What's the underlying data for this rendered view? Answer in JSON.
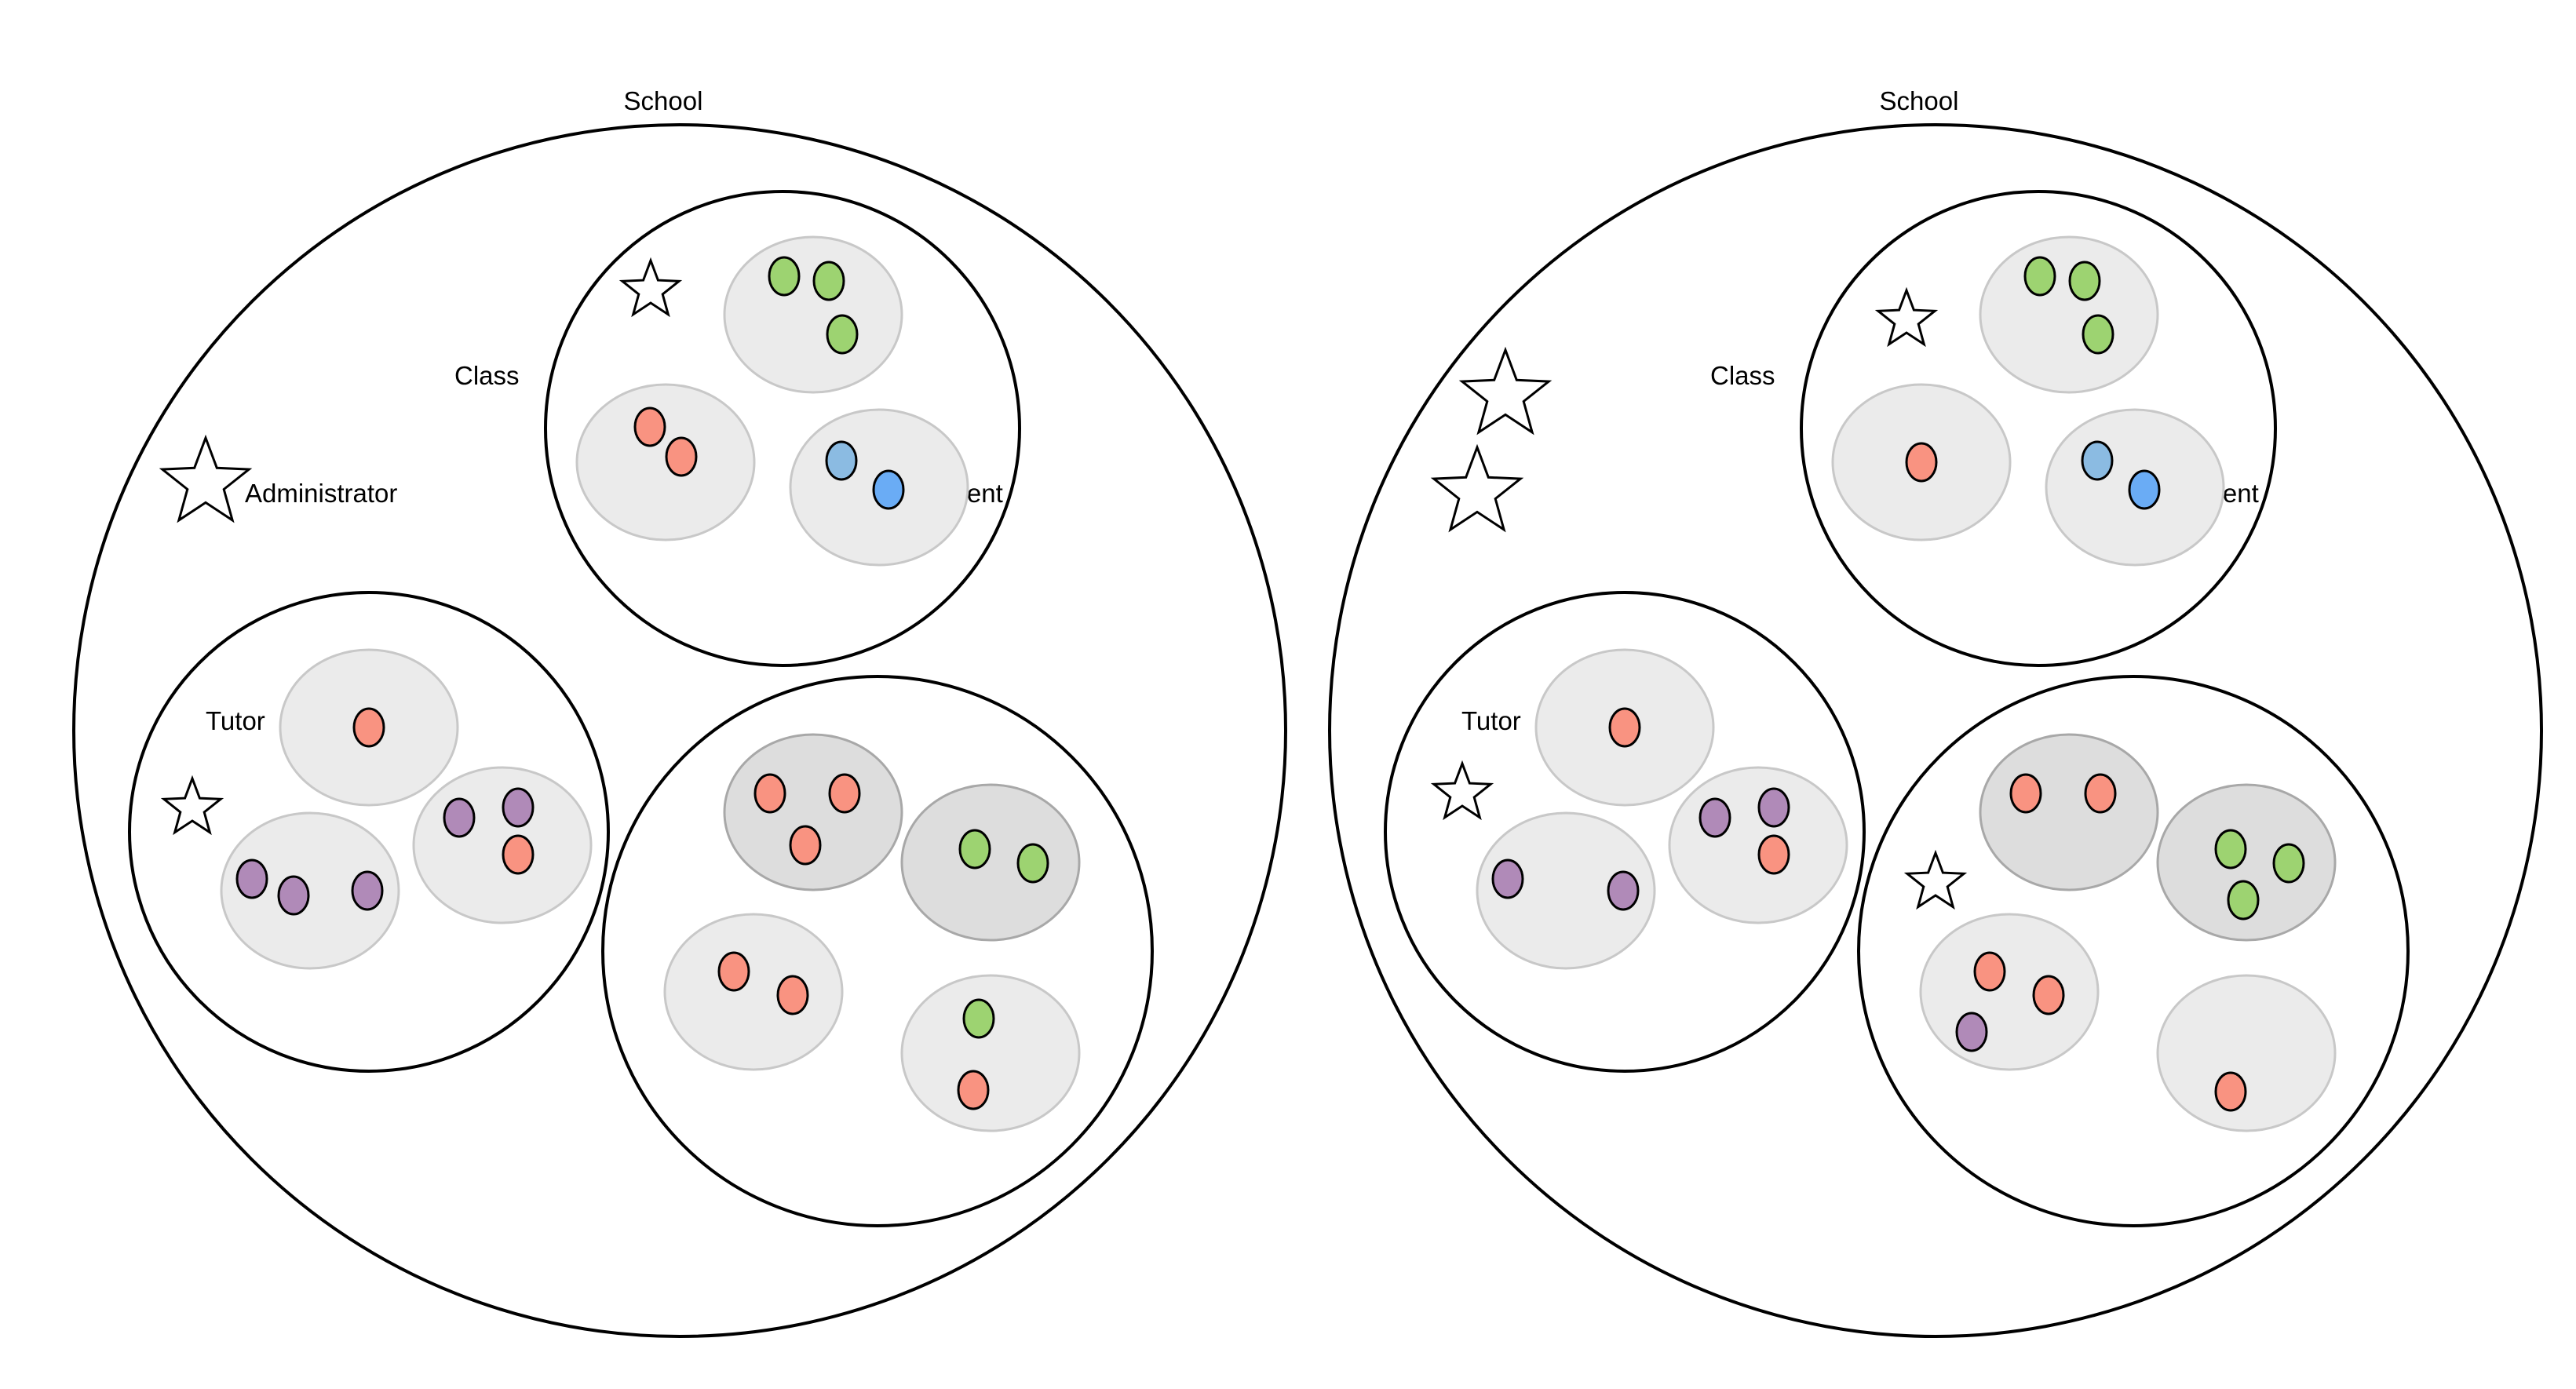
{
  "colors": {
    "background": "#ffffff",
    "outline": "#000000",
    "group_fill": "#ebebeb",
    "group_fill_dark": "#dddddd",
    "group_stroke": "#c8c8c8",
    "group_stroke_dark": "#a8a8a8",
    "red": "#f99381",
    "green": "#9dd371",
    "purple": "#b08ab8",
    "blue_light": "#8bbbe2",
    "blue": "#6aacf5",
    "star_fill": "#ffffff"
  },
  "diagrams": [
    {
      "labels": {
        "school": "School",
        "class": "Class",
        "administrator": "Administrator",
        "student": "Student",
        "tutor": "Tutor"
      },
      "stars": [
        {
          "role": "administrator",
          "size": "large"
        },
        {
          "role": "class-leader",
          "size": "small"
        },
        {
          "role": "tutor-leader",
          "size": "small"
        }
      ],
      "units": [
        {
          "name": "class",
          "groups": [
            {
              "shade": "light",
              "members": [
                "green",
                "green",
                "green"
              ]
            },
            {
              "shade": "light",
              "members": [
                "red",
                "red"
              ]
            },
            {
              "shade": "light",
              "members": [
                "blue_light",
                "blue"
              ]
            }
          ]
        },
        {
          "name": "tutor",
          "groups": [
            {
              "shade": "light",
              "members": [
                "red"
              ]
            },
            {
              "shade": "light",
              "members": [
                "purple",
                "purple",
                "purple"
              ]
            },
            {
              "shade": "light",
              "members": [
                "purple",
                "purple",
                "red"
              ]
            }
          ]
        },
        {
          "name": "third",
          "groups": [
            {
              "shade": "dark",
              "members": [
                "red",
                "red",
                "red"
              ]
            },
            {
              "shade": "dark",
              "members": [
                "green",
                "green"
              ]
            },
            {
              "shade": "light",
              "members": [
                "red",
                "red"
              ]
            },
            {
              "shade": "light",
              "members": [
                "green",
                "red"
              ]
            }
          ]
        }
      ]
    },
    {
      "labels": {
        "school": "School",
        "class": "Class",
        "student": "Student",
        "tutor": "Tutor"
      },
      "stars": [
        {
          "role": "administrator",
          "size": "large"
        },
        {
          "role": "administrator",
          "size": "large"
        },
        {
          "role": "class-leader",
          "size": "small"
        },
        {
          "role": "tutor-leader",
          "size": "small"
        },
        {
          "role": "third-leader",
          "size": "small"
        }
      ],
      "units": [
        {
          "name": "class",
          "groups": [
            {
              "shade": "light",
              "members": [
                "green",
                "green",
                "green"
              ]
            },
            {
              "shade": "light",
              "members": [
                "red"
              ]
            },
            {
              "shade": "light",
              "members": [
                "blue_light",
                "blue"
              ]
            }
          ]
        },
        {
          "name": "tutor",
          "groups": [
            {
              "shade": "light",
              "members": [
                "red"
              ]
            },
            {
              "shade": "light",
              "members": [
                "purple",
                "purple"
              ]
            },
            {
              "shade": "light",
              "members": [
                "purple",
                "purple",
                "red"
              ]
            }
          ]
        },
        {
          "name": "third",
          "groups": [
            {
              "shade": "dark",
              "members": [
                "red",
                "red"
              ]
            },
            {
              "shade": "dark",
              "members": [
                "green",
                "green",
                "green"
              ]
            },
            {
              "shade": "light",
              "members": [
                "red",
                "red",
                "purple"
              ]
            },
            {
              "shade": "light",
              "members": [
                "red"
              ]
            }
          ]
        }
      ]
    }
  ]
}
